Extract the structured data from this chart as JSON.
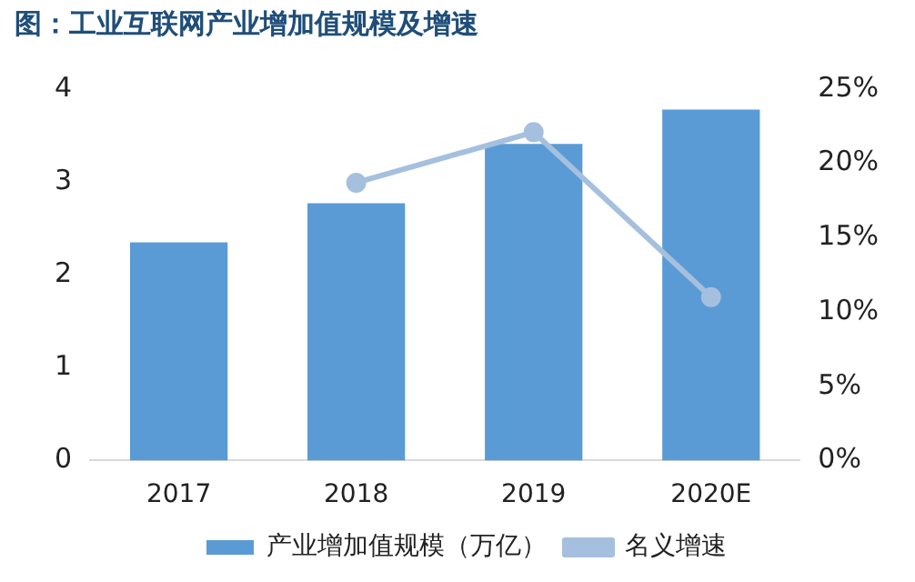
{
  "chart_data": {
    "type": "bar",
    "title": "图：工业互联网产业增加值规模及增速",
    "categories": [
      "2017",
      "2018",
      "2019",
      "2020E"
    ],
    "series": [
      {
        "name": "产业增加值规模（万亿）",
        "color": "#5b9bd5",
        "values": [
          2.35,
          2.77,
          3.41,
          3.78
        ]
      },
      {
        "name": "名义增速",
        "type": "line",
        "axis": "y2",
        "color": "#a5c0de",
        "values": [
          null,
          18.7,
          22.1,
          11.0
        ]
      }
    ],
    "ylim": [
      0,
      4
    ],
    "yticks": [
      0,
      1,
      2,
      3,
      4
    ],
    "y2lim": [
      0,
      25
    ],
    "y2ticks": [
      {
        "value": 0,
        "label": "0%"
      },
      {
        "value": 5,
        "label": "5%"
      },
      {
        "value": 10,
        "label": "10%"
      },
      {
        "value": 15,
        "label": "15%"
      },
      {
        "value": 20,
        "label": "20%"
      },
      {
        "value": 25,
        "label": "25%"
      }
    ],
    "grid": false,
    "legend": "bottom",
    "marker": "circle",
    "line_style": "solid"
  }
}
